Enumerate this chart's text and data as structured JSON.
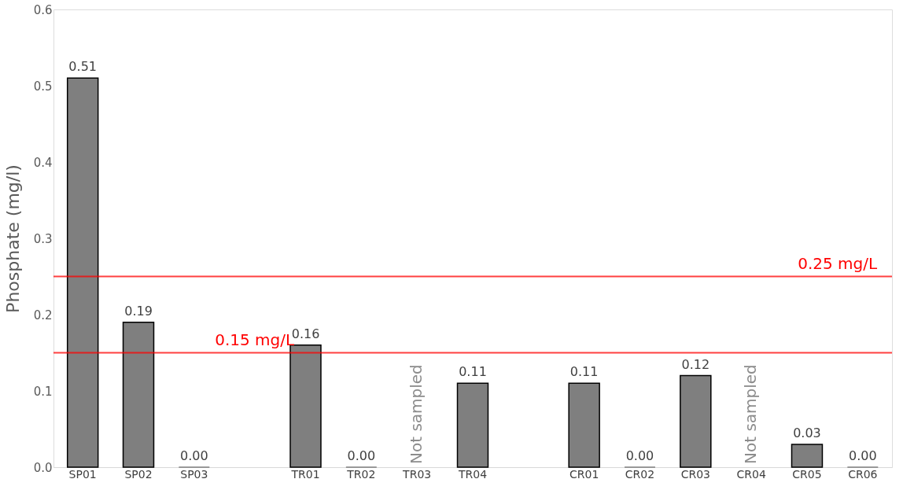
{
  "chart_data": {
    "type": "bar",
    "ylabel": "Phosphate (mg/l)",
    "categories": [
      "SP01",
      "SP02",
      "SP03",
      null,
      "TR01",
      "TR02",
      "TR03",
      "TR04",
      null,
      "CR01",
      "CR02",
      "CR03",
      "CR04",
      "CR05",
      "CR06"
    ],
    "values": [
      0.51,
      0.19,
      0.0,
      null,
      0.16,
      0.0,
      null,
      0.11,
      null,
      0.11,
      0.0,
      0.12,
      null,
      0.03,
      0.0
    ],
    "value_labels": [
      "0.51",
      "0.19",
      "0.00",
      null,
      "0.16",
      "0.00",
      null,
      "0.11",
      null,
      "0.11",
      "0.00",
      "0.12",
      null,
      "0.03",
      "0.00"
    ],
    "color": "#7f7f7f",
    "ylim": [
      0,
      0.6
    ],
    "yticks": [
      {
        "value": 0,
        "label": "0.0"
      },
      {
        "value": 0.1,
        "label": "0.1"
      },
      {
        "value": 0.2,
        "label": "0.2"
      },
      {
        "value": 0.3,
        "label": "0.3"
      },
      {
        "value": 0.4,
        "label": "0.4"
      },
      {
        "value": 0.5,
        "label": "0.5"
      },
      {
        "value": 0.6,
        "label": "0.6"
      }
    ],
    "ref_lines": [
      {
        "axis": "y",
        "value": 0.15,
        "label": "0.15 mg/L",
        "color": "#ff0000"
      },
      {
        "axis": "y",
        "value": 0.25,
        "label": "0.25 mg/L",
        "color": "#ff0000"
      }
    ],
    "annotations": [
      "Not sampled",
      "Not sampled"
    ],
    "grid": false
  }
}
